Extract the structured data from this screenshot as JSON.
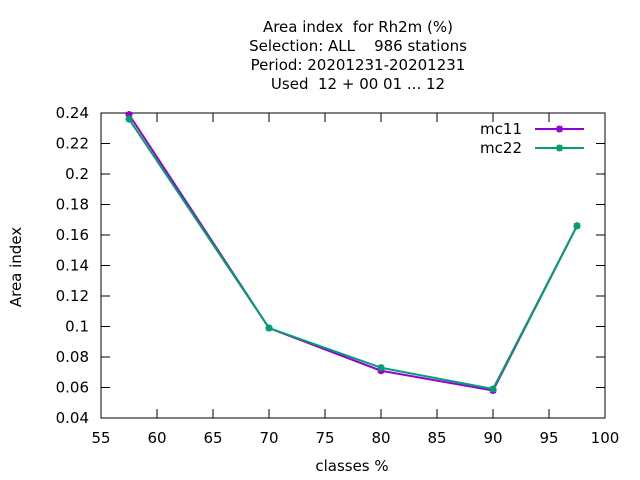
{
  "chart_data": {
    "type": "line",
    "title_lines": [
      "Area index  for Rh2m (%)",
      "Selection: ALL    986 stations",
      "Period: 20201231-20201231",
      "Used  12 + 00 01 ... 12"
    ],
    "xlabel": "classes %",
    "ylabel": "Area index",
    "xlim": [
      55,
      100
    ],
    "ylim": [
      0.04,
      0.24
    ],
    "xticks": [
      55,
      60,
      65,
      70,
      75,
      80,
      85,
      90,
      95,
      100
    ],
    "yticks": [
      0.04,
      0.06,
      0.08,
      0.1,
      0.12,
      0.14,
      0.16,
      0.18,
      0.2,
      0.22,
      0.24
    ],
    "x": [
      57.5,
      70,
      80,
      90,
      97.5
    ],
    "series": [
      {
        "name": "mc11",
        "color": "#9400d3",
        "values": [
          0.239,
          0.099,
          0.071,
          0.058,
          0.166
        ]
      },
      {
        "name": "mc22",
        "color": "#009e73",
        "values": [
          0.236,
          0.099,
          0.073,
          0.059,
          0.166
        ]
      }
    ],
    "legend": {
      "position": "top-right"
    },
    "grid": false
  }
}
